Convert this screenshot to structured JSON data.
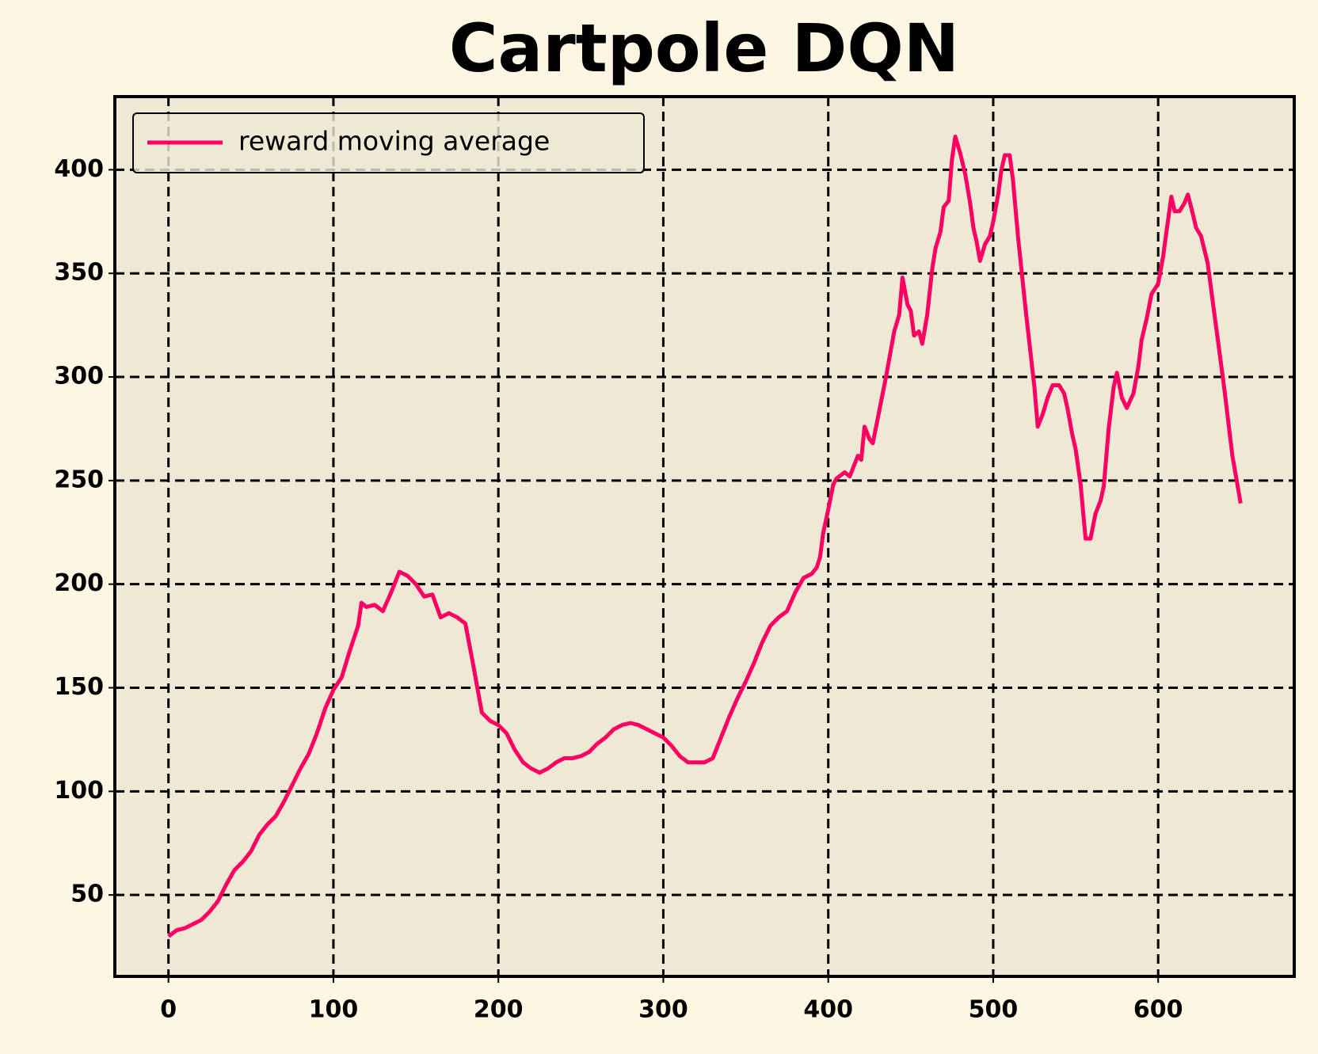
{
  "chart_data": {
    "type": "line",
    "title": "Cartpole DQN",
    "x": [
      0,
      5,
      10,
      15,
      20,
      25,
      30,
      35,
      40,
      45,
      50,
      55,
      60,
      65,
      70,
      75,
      80,
      85,
      90,
      95,
      100,
      105,
      110,
      115,
      117,
      120,
      125,
      130,
      135,
      140,
      145,
      150,
      155,
      160,
      165,
      170,
      175,
      180,
      185,
      190,
      195,
      200,
      205,
      210,
      215,
      220,
      225,
      230,
      235,
      240,
      245,
      250,
      255,
      260,
      265,
      270,
      275,
      280,
      285,
      290,
      295,
      300,
      305,
      310,
      315,
      320,
      325,
      330,
      335,
      340,
      345,
      350,
      355,
      360,
      365,
      370,
      375,
      380,
      385,
      390,
      393,
      395,
      397,
      400,
      403,
      405,
      410,
      413,
      418,
      420,
      422,
      425,
      427,
      430,
      435,
      440,
      443,
      445,
      448,
      450,
      452,
      455,
      457,
      460,
      463,
      465,
      468,
      470,
      473,
      475,
      477,
      480,
      483,
      486,
      488,
      490,
      492,
      495,
      498,
      500,
      503,
      505,
      507,
      510,
      512,
      515,
      520,
      525,
      527,
      530,
      533,
      536,
      540,
      543,
      545,
      548,
      550,
      553,
      556,
      559,
      562,
      565,
      567,
      570,
      573,
      575,
      578,
      581,
      585,
      588,
      590,
      593,
      596,
      600,
      603,
      605,
      608,
      610,
      613,
      616,
      618,
      620,
      623,
      626,
      630,
      635,
      640,
      645,
      650
    ],
    "series": [
      {
        "name": "reward moving average",
        "color": "#fe0062",
        "values": [
          30,
          33,
          34,
          36,
          38,
          42,
          47,
          55,
          62,
          66,
          71,
          79,
          84,
          88,
          95,
          103,
          111,
          118,
          128,
          140,
          149,
          155,
          168,
          180,
          191,
          189,
          190,
          187,
          196,
          206,
          204,
          200,
          194,
          195,
          184,
          186,
          184,
          181,
          160,
          138,
          134,
          132,
          128,
          120,
          114,
          111,
          109,
          111,
          114,
          116,
          116,
          117,
          119,
          123,
          126,
          130,
          132,
          133,
          132,
          130,
          128,
          126,
          122,
          117,
          114,
          114,
          114,
          116,
          126,
          136,
          145,
          153,
          162,
          172,
          180,
          184,
          187,
          196,
          203,
          205,
          208,
          213,
          225,
          236,
          248,
          251,
          254,
          252,
          262,
          260,
          276,
          270,
          268,
          280,
          300,
          322,
          330,
          348,
          335,
          332,
          320,
          322,
          316,
          330,
          352,
          362,
          370,
          382,
          385,
          405,
          416,
          408,
          398,
          384,
          372,
          365,
          356,
          364,
          368,
          375,
          388,
          400,
          407,
          407,
          395,
          368,
          330,
          295,
          276,
          282,
          290,
          296,
          296,
          292,
          285,
          272,
          265,
          248,
          222,
          222,
          234,
          240,
          247,
          275,
          295,
          302,
          290,
          285,
          292,
          305,
          318,
          328,
          340,
          345,
          358,
          370,
          387,
          380,
          380,
          384,
          388,
          382,
          372,
          368,
          355,
          325,
          295,
          262,
          239
        ]
      }
    ],
    "xlim": [
      -32.5,
      682.5
    ],
    "ylim": [
      10.7,
      435.3
    ],
    "xticks": [
      0,
      100,
      200,
      300,
      400,
      500,
      600
    ],
    "yticks": [
      50,
      100,
      150,
      200,
      250,
      300,
      350,
      400
    ],
    "grid": true,
    "legend": "upper left"
  }
}
